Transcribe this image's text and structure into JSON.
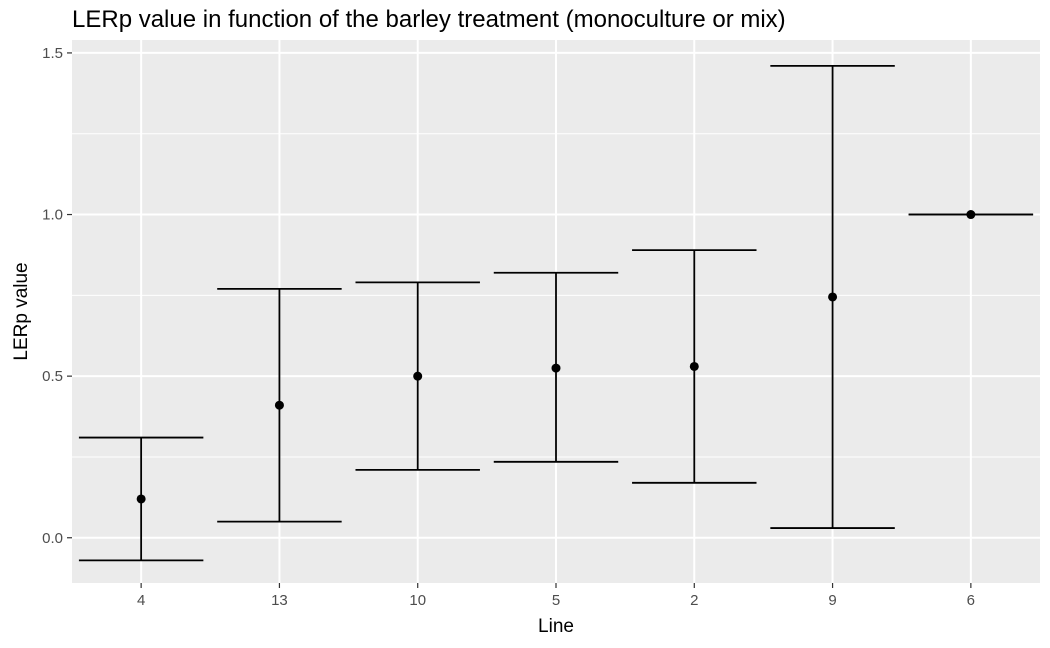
{
  "chart_data": {
    "type": "errorbar",
    "title": "LERp value in function of the barley treatment (monoculture or mix)",
    "xlabel": "Line",
    "ylabel": "LERp value",
    "categories": [
      "4",
      "13",
      "10",
      "5",
      "2",
      "9",
      "6"
    ],
    "values": [
      0.12,
      0.41,
      0.5,
      0.525,
      0.53,
      0.745,
      1.0
    ],
    "error_low": [
      -0.07,
      0.05,
      0.21,
      0.235,
      0.17,
      0.03,
      1.0
    ],
    "error_high": [
      0.31,
      0.77,
      0.79,
      0.82,
      0.89,
      1.46,
      1.0
    ],
    "ylim": [
      -0.14,
      1.54
    ],
    "yticks": [
      0.0,
      0.5,
      1.0,
      1.5
    ],
    "ytick_labels": [
      "0.0",
      "0.5",
      "1.0",
      "1.5"
    ],
    "grid": true,
    "colors": {
      "panel": "#ebebeb",
      "grid": "#ffffff",
      "mark": "#000000",
      "tick_text": "#4d4d4d"
    }
  }
}
